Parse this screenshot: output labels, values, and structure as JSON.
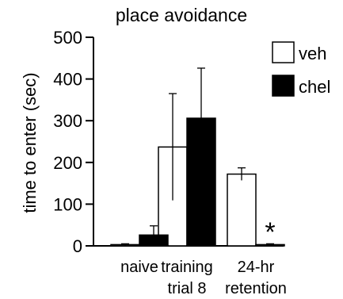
{
  "chart_data": {
    "type": "bar",
    "title": "place avoidance",
    "xlabel": "",
    "ylabel": "time to enter (sec)",
    "ylim": [
      0,
      500
    ],
    "yticks": [
      0,
      100,
      200,
      300,
      400,
      500
    ],
    "categories": [
      {
        "line1": "naive",
        "line2": ""
      },
      {
        "line1": "training",
        "line2": "trial 8"
      },
      {
        "line1": "24-hr",
        "line2": "retention"
      }
    ],
    "series": [
      {
        "name": "veh",
        "color": "#ffffff",
        "values": [
          3,
          237,
          172
        ],
        "errors": [
          2,
          128,
          15
        ]
      },
      {
        "name": "chel",
        "color": "#000000",
        "values": [
          26,
          306,
          3
        ],
        "errors": [
          22,
          120,
          2
        ]
      }
    ],
    "legend_position": "top-right",
    "annotations": [
      {
        "category_index": 2,
        "series_index": 1,
        "text": "*"
      }
    ]
  }
}
